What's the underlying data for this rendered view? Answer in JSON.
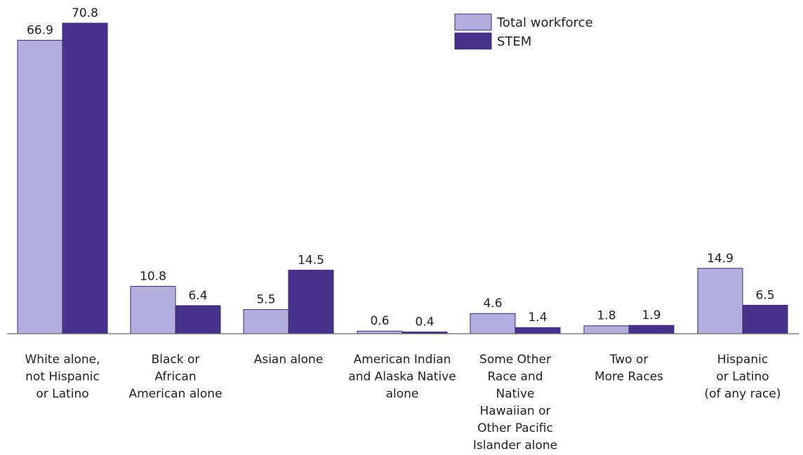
{
  "chart_data": {
    "type": "bar",
    "title": "",
    "xlabel": "",
    "ylabel": "",
    "grid": false,
    "legend_position": "top-right",
    "ylim": [
      0,
      75
    ],
    "categories": [
      [
        "White alone,",
        "not Hispanic",
        "or Latino"
      ],
      [
        "Black or",
        "African",
        "American alone"
      ],
      [
        "Asian alone"
      ],
      [
        "American Indian",
        "and Alaska Native",
        "alone"
      ],
      [
        "Some Other",
        "Race and",
        "Native",
        "Hawaiian or",
        "Other Pacific",
        "Islander alone"
      ],
      [
        "Two or",
        "More Races"
      ],
      [
        "Hispanic",
        "or Latino",
        "(of any race)"
      ]
    ],
    "series": [
      {
        "name": "Total workforce",
        "color": "#b3aedb",
        "values": [
          66.9,
          10.8,
          5.5,
          0.6,
          4.6,
          1.8,
          14.9
        ]
      },
      {
        "name": "STEM",
        "color": "#47318a",
        "values": [
          70.8,
          6.4,
          14.5,
          0.4,
          1.4,
          1.9,
          6.5
        ]
      }
    ]
  }
}
